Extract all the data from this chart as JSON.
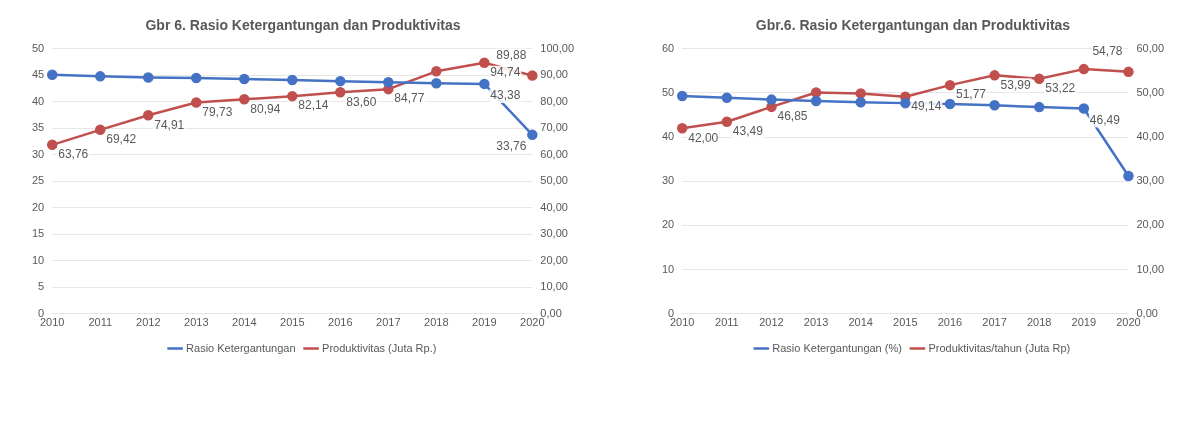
{
  "chart_data": [
    {
      "type": "line",
      "title": "Gbr 6. Rasio Ketergantungan dan Produktivitas",
      "categories": [
        "2010",
        "2011",
        "2012",
        "2013",
        "2014",
        "2015",
        "2016",
        "2017",
        "2018",
        "2019",
        "2020"
      ],
      "series": [
        {
          "name": "Rasio Ketergantungan",
          "color": "#4472c4",
          "values": [
            45.1,
            44.8,
            44.6,
            44.5,
            44.3,
            44.1,
            43.9,
            43.7,
            43.5,
            43.38,
            33.76
          ],
          "value_labels": [
            null,
            null,
            null,
            null,
            null,
            null,
            null,
            null,
            null,
            "43,38",
            "33,76"
          ]
        },
        {
          "name": "Produktivitas (Juta Rp.)",
          "color": "#c0504d",
          "axis": "y2",
          "values": [
            63.76,
            69.42,
            74.91,
            79.73,
            80.94,
            82.14,
            83.6,
            84.77,
            91.5,
            94.74,
            89.88
          ],
          "value_labels": [
            "63,76",
            "69,42",
            "74,91",
            "79,73",
            "80,94",
            "82,14",
            "83,60",
            "84,77",
            null,
            "94,74",
            "89,88"
          ]
        }
      ],
      "ylim": [
        0,
        50
      ],
      "yticks": [
        0,
        5,
        10,
        15,
        20,
        25,
        30,
        35,
        40,
        45,
        50
      ],
      "y2lim": [
        0,
        100
      ],
      "y2ticks": [
        {
          "value": 0,
          "label": "0,00"
        },
        {
          "value": 10,
          "label": "10,00"
        },
        {
          "value": 20,
          "label": "20,00"
        },
        {
          "value": 30,
          "label": "30,00"
        },
        {
          "value": 40,
          "label": "40,00"
        },
        {
          "value": 50,
          "label": "50,00"
        },
        {
          "value": 60,
          "label": "60,00"
        },
        {
          "value": 70,
          "label": "70,00"
        },
        {
          "value": 80,
          "label": "80,00"
        },
        {
          "value": 90,
          "label": "90,00"
        },
        {
          "value": 100,
          "label": "100,00"
        }
      ],
      "grid": "y",
      "legend": "bottom",
      "marker": "circle",
      "line_style": "solid"
    },
    {
      "type": "line",
      "title": "Gbr.6. Rasio Ketergantungan dan Produktivitas",
      "categories": [
        "2010",
        "2011",
        "2012",
        "2013",
        "2014",
        "2015",
        "2016",
        "2017",
        "2018",
        "2019",
        "2020"
      ],
      "series": [
        {
          "name": "Rasio Ketergantungan (%)",
          "color": "#4472c4",
          "values": [
            49.3,
            48.9,
            48.5,
            48.2,
            47.9,
            47.7,
            47.5,
            47.2,
            46.8,
            46.49,
            31.2
          ],
          "value_labels": [
            null,
            null,
            null,
            null,
            null,
            null,
            null,
            null,
            null,
            "46,49",
            null
          ]
        },
        {
          "name": "Produktivitas/tahun (Juta Rp)",
          "color": "#c0504d",
          "axis": "y2",
          "values": [
            42.0,
            43.49,
            46.85,
            50.1,
            49.9,
            49.14,
            51.77,
            53.99,
            53.22,
            55.4,
            54.78
          ],
          "value_labels": [
            "42,00",
            "43,49",
            "46,85",
            null,
            null,
            "49,14",
            "51,77",
            "53,99",
            "53,22",
            null,
            "54,78"
          ]
        }
      ],
      "ylim": [
        0,
        60
      ],
      "yticks": [
        0,
        10,
        20,
        30,
        40,
        50,
        60
      ],
      "y2lim": [
        0,
        60
      ],
      "y2ticks": [
        {
          "value": 0,
          "label": "0,00"
        },
        {
          "value": 10,
          "label": "10,00"
        },
        {
          "value": 20,
          "label": "20,00"
        },
        {
          "value": 30,
          "label": "30,00"
        },
        {
          "value": 40,
          "label": "40,00"
        },
        {
          "value": 50,
          "label": "50,00"
        },
        {
          "value": 60,
          "label": "60,00"
        }
      ],
      "grid": "y",
      "legend": "bottom",
      "marker": "circle",
      "line_style": "solid"
    }
  ]
}
